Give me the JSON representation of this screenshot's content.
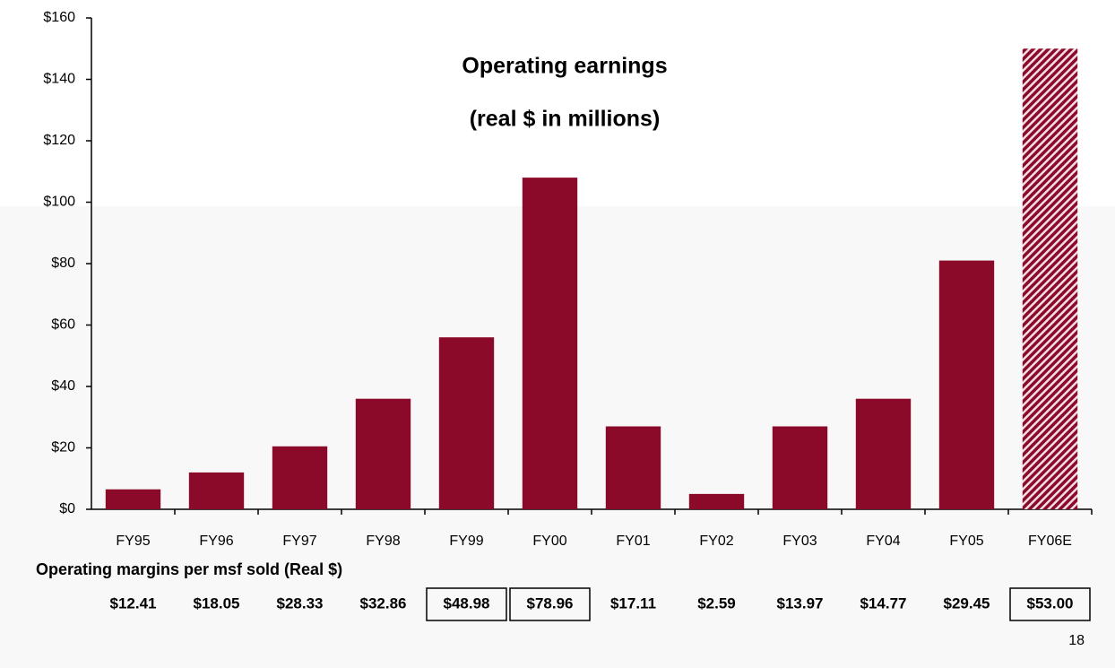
{
  "chart_data": {
    "type": "bar",
    "title": "Operating earnings",
    "subtitle": "(real $ in millions)",
    "categories": [
      "FY95",
      "FY96",
      "FY97",
      "FY98",
      "FY99",
      "FY00",
      "FY01",
      "FY02",
      "FY03",
      "FY04",
      "FY05",
      "FY06E"
    ],
    "values": [
      6.5,
      12,
      20.5,
      36,
      56,
      108,
      27,
      5,
      27,
      36,
      81,
      150
    ],
    "color": "#8b0a2a",
    "hatched": [
      11
    ],
    "ylim": [
      0,
      160
    ],
    "yticks": [
      {
        "value": 0,
        "label": "$0"
      },
      {
        "value": 20,
        "label": "$20"
      },
      {
        "value": 40,
        "label": "$40"
      },
      {
        "value": 60,
        "label": "$60"
      },
      {
        "value": 80,
        "label": "$80"
      },
      {
        "value": 100,
        "label": "$100"
      },
      {
        "value": 120,
        "label": "$120"
      },
      {
        "value": 140,
        "label": "$140"
      },
      {
        "value": 160,
        "label": "$160"
      }
    ],
    "grid": false,
    "margins": {
      "title": "Operating margins per msf sold (Real $)",
      "values": [
        12.41,
        18.05,
        28.33,
        32.86,
        48.98,
        78.96,
        17.11,
        2.59,
        13.97,
        14.77,
        29.45,
        53.0
      ],
      "value_labels": [
        "$12.41",
        "$18.05",
        "$28.33",
        "$32.86",
        "$48.98",
        "$78.96",
        "$17.11",
        "$2.59",
        "$13.97",
        "$14.77",
        "$29.45",
        "$53.00"
      ],
      "boxed": [
        4,
        5,
        11
      ]
    }
  },
  "page_number": "18"
}
